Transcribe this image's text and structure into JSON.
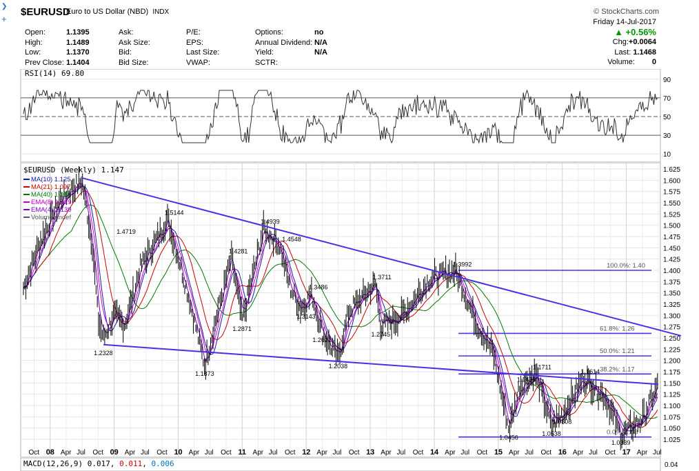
{
  "header": {
    "symbol": "$EURUSD",
    "description": "Euro to US Dollar (NBD)",
    "exchange": "INDX",
    "brand": "© StockCharts.com",
    "date": "Friday 14-Jul-2017",
    "change_pct": "▲ +0.56%",
    "chg_label": "Chg:",
    "chg_value": "+0.0064",
    "last_label": "Last:",
    "last_value": "1.1468",
    "volume_label": "Volume:",
    "volume_value": "0",
    "quote_fields": [
      {
        "label": "Open:",
        "value": "1.1395"
      },
      {
        "label": "High:",
        "value": "1.1489"
      },
      {
        "label": "Low:",
        "value": "1.1370"
      },
      {
        "label": "Prev Close:",
        "value": "1.1404"
      }
    ],
    "quote_fields2": [
      {
        "label": "Ask:",
        "value": ""
      },
      {
        "label": "Ask Size:",
        "value": ""
      },
      {
        "label": "Bid:",
        "value": ""
      },
      {
        "label": "Bid Size:",
        "value": ""
      }
    ],
    "quote_fields3": [
      {
        "label": "P/E:",
        "value": ""
      },
      {
        "label": "EPS:",
        "value": ""
      },
      {
        "label": "Last Size:",
        "value": ""
      },
      {
        "label": "VWAP:",
        "value": ""
      }
    ],
    "quote_fields4": [
      {
        "label": "Options:",
        "value": "no"
      },
      {
        "label": "Annual Dividend:",
        "value": "N/A"
      },
      {
        "label": "Yield:",
        "value": "N/A"
      },
      {
        "label": "SCTR:",
        "value": ""
      }
    ]
  },
  "colors": {
    "ma10": "#1a1aa6",
    "ma21": "#cc0000",
    "ma40": "#007a00",
    "ema8": "#cc00cc",
    "ema4": "#7a00cc",
    "trendline": "#4b2fe6",
    "up": "#009900",
    "rsi_high_fill": "#3c7a3c",
    "rsi_low_fill": "#8a5a6a"
  },
  "rsi_panel": {
    "label": "RSI(14) 69.80",
    "levels": [
      "90",
      "70",
      "50",
      "30",
      "10"
    ]
  },
  "macd_panel": {
    "label_prefix": "MACD(12,26,9)",
    "v1": "0.017",
    "v2": "0.011",
    "v3": "0.006",
    "right_value": "0.04"
  },
  "chart_data": {
    "type": "line",
    "title": "$EURUSD (Weekly) 1.147",
    "legend": [
      {
        "name": "MA(10) 1.125",
        "color": "#1a1aa6"
      },
      {
        "name": "MA(21) 1.097",
        "color": "#cc0000"
      },
      {
        "name": "MA(40) 1.084",
        "color": "#007a00"
      },
      {
        "name": "EMA(8) 1.129",
        "color": "#cc00cc"
      },
      {
        "name": "EMA(4) 1.139",
        "color": "#7a00cc"
      },
      {
        "name": "Volume undef",
        "color": "#555555"
      }
    ],
    "ylim": [
      1.0,
      1.63
    ],
    "y_ticks": [
      "1.625",
      "1.600",
      "1.575",
      "1.550",
      "1.525",
      "1.500",
      "1.475",
      "1.450",
      "1.425",
      "1.400",
      "1.375",
      "1.350",
      "1.325",
      "1.300",
      "1.275",
      "1.250",
      "1.225",
      "1.200",
      "1.175",
      "1.150",
      "1.125",
      "1.100",
      "1.075",
      "1.050",
      "1.025"
    ],
    "x_ticks": [
      "Oct",
      "08",
      "Apr",
      "Jul",
      "Oct",
      "09",
      "Apr",
      "Jul",
      "Oct",
      "10",
      "Apr",
      "Jul",
      "Oct",
      "11",
      "Apr",
      "Jul",
      "Oct",
      "12",
      "Apr",
      "Jul",
      "Oct",
      "13",
      "Apr",
      "Jul",
      "Oct",
      "14",
      "Apr",
      "Jul",
      "Oct",
      "15",
      "Apr",
      "Jul",
      "Oct",
      "16",
      "Apr",
      "Jul",
      "Oct",
      "17",
      "Apr",
      "Jul"
    ],
    "x_year_ticks": [
      "08",
      "09",
      "10",
      "11",
      "12",
      "13",
      "14",
      "15",
      "16",
      "17"
    ],
    "x_range": [
      "2007-08",
      "2017-07"
    ],
    "price": [
      {
        "d": "2007-08",
        "v": 1.36
      },
      {
        "d": "2007-11",
        "v": 1.46
      },
      {
        "d": "2008-03",
        "v": 1.56
      },
      {
        "d": "2008-07",
        "v": 1.598
      },
      {
        "d": "2008-09",
        "v": 1.45
      },
      {
        "d": "2008-10",
        "v": 1.29
      },
      {
        "d": "2008-11",
        "v": 1.25
      },
      {
        "d": "2009-01",
        "v": 1.3
      },
      {
        "d": "2009-03",
        "v": 1.28
      },
      {
        "d": "2009-06",
        "v": 1.41
      },
      {
        "d": "2009-09",
        "v": 1.47
      },
      {
        "d": "2009-11",
        "v": 1.5144
      },
      {
        "d": "2010-01",
        "v": 1.43
      },
      {
        "d": "2010-03",
        "v": 1.34
      },
      {
        "d": "2010-06",
        "v": 1.1873
      },
      {
        "d": "2010-08",
        "v": 1.29
      },
      {
        "d": "2010-11",
        "v": 1.4281
      },
      {
        "d": "2011-01",
        "v": 1.2871
      },
      {
        "d": "2011-05",
        "v": 1.4939
      },
      {
        "d": "2011-08",
        "v": 1.4548
      },
      {
        "d": "2011-10",
        "v": 1.36
      },
      {
        "d": "2011-12",
        "v": 1.3143
      },
      {
        "d": "2012-02",
        "v": 1.3486
      },
      {
        "d": "2012-04",
        "v": 1.2621
      },
      {
        "d": "2012-07",
        "v": 1.2038
      },
      {
        "d": "2012-09",
        "v": 1.31
      },
      {
        "d": "2013-02",
        "v": 1.3711
      },
      {
        "d": "2013-03",
        "v": 1.2745
      },
      {
        "d": "2013-07",
        "v": 1.3
      },
      {
        "d": "2013-12",
        "v": 1.38
      },
      {
        "d": "2014-05",
        "v": 1.3992
      },
      {
        "d": "2014-09",
        "v": 1.28
      },
      {
        "d": "2014-12",
        "v": 1.22
      },
      {
        "d": "2015-03",
        "v": 1.0456
      },
      {
        "d": "2015-05",
        "v": 1.1436
      },
      {
        "d": "2015-08",
        "v": 1.1711
      },
      {
        "d": "2015-11",
        "v": 1.0538
      },
      {
        "d": "2016-01",
        "v": 1.0808
      },
      {
        "d": "2016-05",
        "v": 1.1614
      },
      {
        "d": "2016-09",
        "v": 1.12
      },
      {
        "d": "2016-12",
        "v": 1.0339
      },
      {
        "d": "2017-04",
        "v": 1.07
      },
      {
        "d": "2017-07",
        "v": 1.147
      }
    ],
    "ma40": [
      {
        "d": "2007-08",
        "v": 1.34
      },
      {
        "d": "2008-07",
        "v": 1.52
      },
      {
        "d": "2009-01",
        "v": 1.4
      },
      {
        "d": "2009-06",
        "v": 1.34
      },
      {
        "d": "2010-01",
        "v": 1.43
      },
      {
        "d": "2010-09",
        "v": 1.3
      },
      {
        "d": "2011-06",
        "v": 1.39
      },
      {
        "d": "2012-02",
        "v": 1.35
      },
      {
        "d": "2012-10",
        "v": 1.28
      },
      {
        "d": "2013-06",
        "v": 1.31
      },
      {
        "d": "2014-05",
        "v": 1.36
      },
      {
        "d": "2015-01",
        "v": 1.25
      },
      {
        "d": "2015-09",
        "v": 1.11
      },
      {
        "d": "2016-06",
        "v": 1.11
      },
      {
        "d": "2017-01",
        "v": 1.09
      },
      {
        "d": "2017-07",
        "v": 1.084
      }
    ],
    "peak_labels": [
      {
        "label": "1.4719",
        "d": "2009-02",
        "v": 1.4719
      },
      {
        "label": "1.5144",
        "d": "2009-11",
        "v": 1.5144
      },
      {
        "label": "1.4281",
        "d": "2010-11",
        "v": 1.4281
      },
      {
        "label": "1.4939",
        "d": "2011-05",
        "v": 1.4939
      },
      {
        "label": "1.4548",
        "d": "2011-09",
        "v": 1.4548
      },
      {
        "label": "1.3486",
        "d": "2012-02",
        "v": 1.3486
      },
      {
        "label": "1.3711",
        "d": "2013-02",
        "v": 1.3711
      },
      {
        "label": "1.3992",
        "d": "2014-05",
        "v": 1.3992
      },
      {
        "label": "1.1711",
        "d": "2015-08",
        "v": 1.1711
      },
      {
        "label": "1.1436",
        "d": "2015-05",
        "v": 1.1436
      },
      {
        "label": "1.1614",
        "d": "2016-05",
        "v": 1.1614
      }
    ],
    "trough_labels": [
      {
        "label": "1.2328",
        "d": "2008-11",
        "v": 1.2328
      },
      {
        "label": "1.1873",
        "d": "2010-06",
        "v": 1.1873
      },
      {
        "label": "1.2871",
        "d": "2011-01",
        "v": 1.2871
      },
      {
        "label": "1.3143",
        "d": "2012-01",
        "v": 1.3143
      },
      {
        "label": "1.2621",
        "d": "2012-04",
        "v": 1.2621
      },
      {
        "label": "1.2038",
        "d": "2012-07",
        "v": 1.2038
      },
      {
        "label": "1.2745",
        "d": "2013-03",
        "v": 1.2745
      },
      {
        "label": "1.0808",
        "d": "2016-01",
        "v": 1.0808
      },
      {
        "label": "1.0456",
        "d": "2015-03",
        "v": 1.0456
      },
      {
        "label": "1.0538",
        "d": "2015-11",
        "v": 1.0538
      },
      {
        "label": "1.0339",
        "d": "2016-12",
        "v": 1.0339
      }
    ],
    "fib_levels": [
      {
        "label": "100.0%: 1.40",
        "v": 1.4
      },
      {
        "label": "61.8%: 1.26",
        "v": 1.26
      },
      {
        "label": "50.0%: 1.21",
        "v": 1.21
      },
      {
        "label": "38.2%: 1.17",
        "v": 1.17
      },
      {
        "label": "0.0%: 1.03",
        "v": 1.03
      }
    ],
    "trendlines": [
      {
        "from": {
          "d": "2008-07",
          "v": 1.605
        },
        "to": {
          "d": "2017-07",
          "v": 1.268
        }
      },
      {
        "from": {
          "d": "2008-11",
          "v": 1.235
        },
        "to": {
          "d": "2017-07",
          "v": 1.147
        }
      }
    ]
  }
}
